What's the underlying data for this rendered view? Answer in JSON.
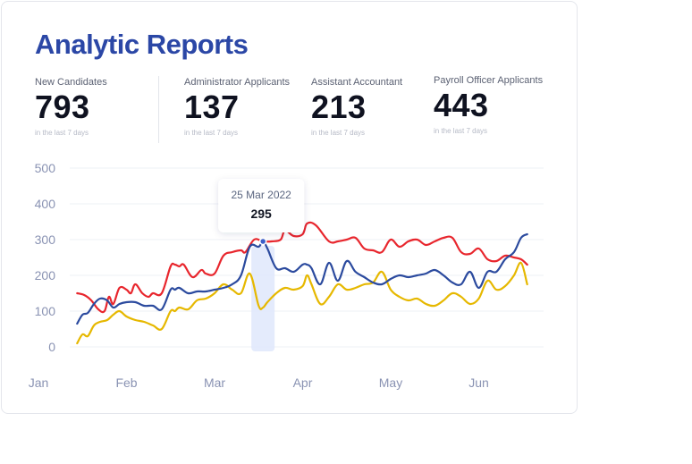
{
  "title": "Analytic Reports",
  "stats": [
    {
      "label": "New Candidates",
      "value": "793",
      "sub": "in the last 7 days"
    },
    {
      "label": "Administrator Applicants",
      "value": "137",
      "sub": "in the last 7 days"
    },
    {
      "label": "Assistant Accountant",
      "value": "213",
      "sub": "in the last 7 days"
    },
    {
      "label": "Payroll Officer Applicants",
      "value": "443",
      "sub": "in the last 7 days"
    }
  ],
  "tooltip": {
    "date": "25 Mar 2022",
    "value": "295"
  },
  "chart_data": {
    "type": "line",
    "ylim": [
      0,
      500
    ],
    "yticks": [
      "0",
      "100",
      "200",
      "300",
      "400",
      "500"
    ],
    "xlim": [
      0,
      5.5
    ],
    "xticks": [
      {
        "label": "Jan",
        "x": 0
      },
      {
        "label": "Feb",
        "x": 1
      },
      {
        "label": "Mar",
        "x": 2
      },
      {
        "label": "Apr",
        "x": 3
      },
      {
        "label": "May",
        "x": 4
      },
      {
        "label": "Jun",
        "x": 5
      }
    ],
    "grid": true,
    "highlight_x": 2.55,
    "series": [
      {
        "color": "#e8262d",
        "x": [
          0.44,
          0.52,
          0.6,
          0.68,
          0.75,
          0.8,
          0.85,
          0.92,
          1.0,
          1.05,
          1.1,
          1.18,
          1.25,
          1.3,
          1.4,
          1.5,
          1.55,
          1.6,
          1.65,
          1.75,
          1.85,
          1.9,
          2.0,
          2.1,
          2.2,
          2.3,
          2.35,
          2.45,
          2.55,
          2.65,
          2.75,
          2.8,
          2.9,
          3.0,
          3.05,
          3.15,
          3.3,
          3.4,
          3.5,
          3.6,
          3.7,
          3.8,
          3.9,
          4.0,
          4.1,
          4.2,
          4.3,
          4.4,
          4.5,
          4.6,
          4.7,
          4.8,
          4.9,
          5.0,
          5.1,
          5.2,
          5.3,
          5.4,
          5.48,
          5.55
        ],
        "values": [
          150,
          145,
          130,
          105,
          100,
          140,
          120,
          165,
          160,
          150,
          175,
          150,
          140,
          150,
          150,
          225,
          230,
          225,
          230,
          195,
          215,
          205,
          205,
          255,
          265,
          270,
          265,
          300,
          295,
          295,
          300,
          325,
          310,
          315,
          345,
          340,
          295,
          295,
          300,
          305,
          275,
          270,
          265,
          300,
          280,
          295,
          300,
          285,
          295,
          305,
          305,
          265,
          260,
          275,
          245,
          240,
          255,
          250,
          245,
          230
        ]
      },
      {
        "color": "#2b4a9e",
        "x": [
          0.44,
          0.5,
          0.56,
          0.63,
          0.7,
          0.78,
          0.85,
          0.92,
          1.0,
          1.1,
          1.2,
          1.3,
          1.4,
          1.5,
          1.55,
          1.6,
          1.7,
          1.8,
          1.9,
          2.0,
          2.1,
          2.2,
          2.3,
          2.4,
          2.5,
          2.55,
          2.6,
          2.7,
          2.8,
          2.9,
          3.0,
          3.05,
          3.1,
          3.2,
          3.3,
          3.4,
          3.5,
          3.6,
          3.7,
          3.8,
          3.9,
          4.0,
          4.1,
          4.2,
          4.3,
          4.4,
          4.5,
          4.6,
          4.7,
          4.8,
          4.9,
          5.0,
          5.1,
          5.2,
          5.3,
          5.4,
          5.48,
          5.55
        ],
        "values": [
          65,
          90,
          95,
          120,
          135,
          130,
          110,
          120,
          125,
          125,
          115,
          115,
          105,
          160,
          160,
          165,
          150,
          155,
          155,
          160,
          165,
          175,
          200,
          280,
          280,
          295,
          275,
          220,
          220,
          210,
          230,
          230,
          220,
          175,
          235,
          185,
          240,
          210,
          195,
          180,
          175,
          190,
          200,
          195,
          200,
          205,
          215,
          200,
          180,
          175,
          210,
          165,
          210,
          210,
          245,
          265,
          305,
          315
        ]
      },
      {
        "color": "#e6b800",
        "x": [
          0.44,
          0.5,
          0.56,
          0.63,
          0.7,
          0.78,
          0.85,
          0.92,
          1.0,
          1.1,
          1.2,
          1.3,
          1.4,
          1.5,
          1.55,
          1.6,
          1.7,
          1.8,
          1.9,
          2.0,
          2.1,
          2.2,
          2.3,
          2.4,
          2.5,
          2.55,
          2.6,
          2.7,
          2.8,
          2.9,
          3.0,
          3.05,
          3.1,
          3.2,
          3.3,
          3.4,
          3.5,
          3.6,
          3.7,
          3.8,
          3.9,
          4.0,
          4.1,
          4.2,
          4.3,
          4.4,
          4.5,
          4.6,
          4.7,
          4.8,
          4.9,
          5.0,
          5.1,
          5.2,
          5.3,
          5.4,
          5.48,
          5.55
        ],
        "values": [
          10,
          35,
          30,
          60,
          70,
          75,
          90,
          100,
          85,
          75,
          70,
          60,
          50,
          100,
          100,
          110,
          105,
          130,
          135,
          150,
          175,
          160,
          150,
          205,
          115,
          110,
          125,
          150,
          165,
          160,
          170,
          200,
          175,
          120,
          140,
          175,
          160,
          165,
          175,
          180,
          210,
          160,
          140,
          130,
          135,
          120,
          115,
          130,
          150,
          140,
          120,
          135,
          185,
          160,
          170,
          200,
          235,
          175
        ]
      }
    ]
  }
}
